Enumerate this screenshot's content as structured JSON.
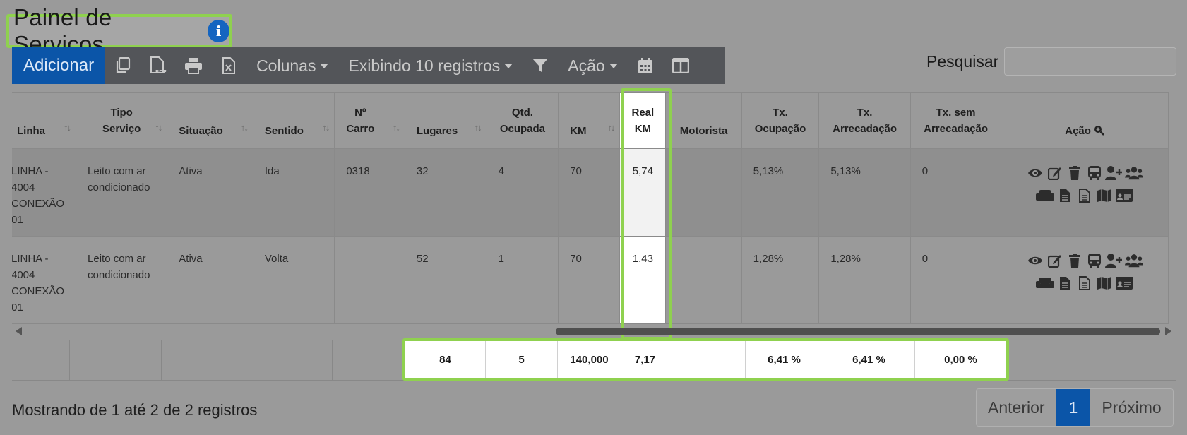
{
  "title": "Painel de Serviços",
  "toolbar": {
    "add_label": "Adicionar",
    "columns_label": "Colunas",
    "show_label": "Exibindo 10 registros",
    "action_label": "Ação"
  },
  "search": {
    "label": "Pesquisar",
    "value": ""
  },
  "table": {
    "headers": {
      "linha": "Linha",
      "tipo1": "Tipo",
      "tipo2": "Serviço",
      "situacao": "Situação",
      "sentido": "Sentido",
      "carro1": "Nº",
      "carro2": "Carro",
      "lugares": "Lugares",
      "qtd1": "Qtd.",
      "qtd2": "Ocupada",
      "km": "KM",
      "real1": "Real",
      "real2": "KM",
      "motorista": "Motorista",
      "txoc1": "Tx.",
      "txoc2": "Ocupação",
      "txar1": "Tx.",
      "txar2": "Arrecadação",
      "txsem1": "Tx. sem",
      "txsem2": "Arrecadação",
      "acao": "Ação"
    },
    "rows": [
      {
        "linha": [
          "LINHA -",
          "4004",
          "CONEXÃO",
          "01"
        ],
        "tipo": [
          "Leito com ar",
          "condicionado"
        ],
        "situacao": "Ativa",
        "sentido": "Ida",
        "carro": "0318",
        "lugares": "32",
        "qtd": "4",
        "km": "70",
        "real_km": "5,74",
        "motorista": "",
        "tx_ocupacao": "5,13%",
        "tx_arrecadacao": "5,13%",
        "tx_sem": "0"
      },
      {
        "linha": [
          "LINHA -",
          "4004",
          "CONEXÃO",
          "01"
        ],
        "tipo": [
          "Leito com ar",
          "condicionado"
        ],
        "situacao": "Ativa",
        "sentido": "Volta",
        "carro": "",
        "lugares": "52",
        "qtd": "1",
        "km": "70",
        "real_km": "1,43",
        "motorista": "",
        "tx_ocupacao": "1,28%",
        "tx_arrecadacao": "1,28%",
        "tx_sem": "0"
      }
    ],
    "totals": {
      "lugares": "84",
      "qtd": "5",
      "km": "140,000",
      "real_km": "7,17",
      "tx_ocupacao": "6,41 %",
      "tx_arrecadacao": "6,41 %",
      "tx_sem": "0,00 %"
    },
    "action_icons": [
      "eye-icon",
      "edit-icon",
      "trash-icon",
      "bus-icon",
      "user-plus-icon",
      "users-icon",
      "seat-icon",
      "file-icon",
      "file-alt-icon",
      "map-icon",
      "id-card-icon"
    ]
  },
  "footer": {
    "info": "Mostrando de 1 até 2 de 2 registros",
    "prev": "Anterior",
    "page": "1",
    "next": "Próximo"
  },
  "colors": {
    "highlight": "#8fd14f",
    "primary": "#0b55a8"
  }
}
